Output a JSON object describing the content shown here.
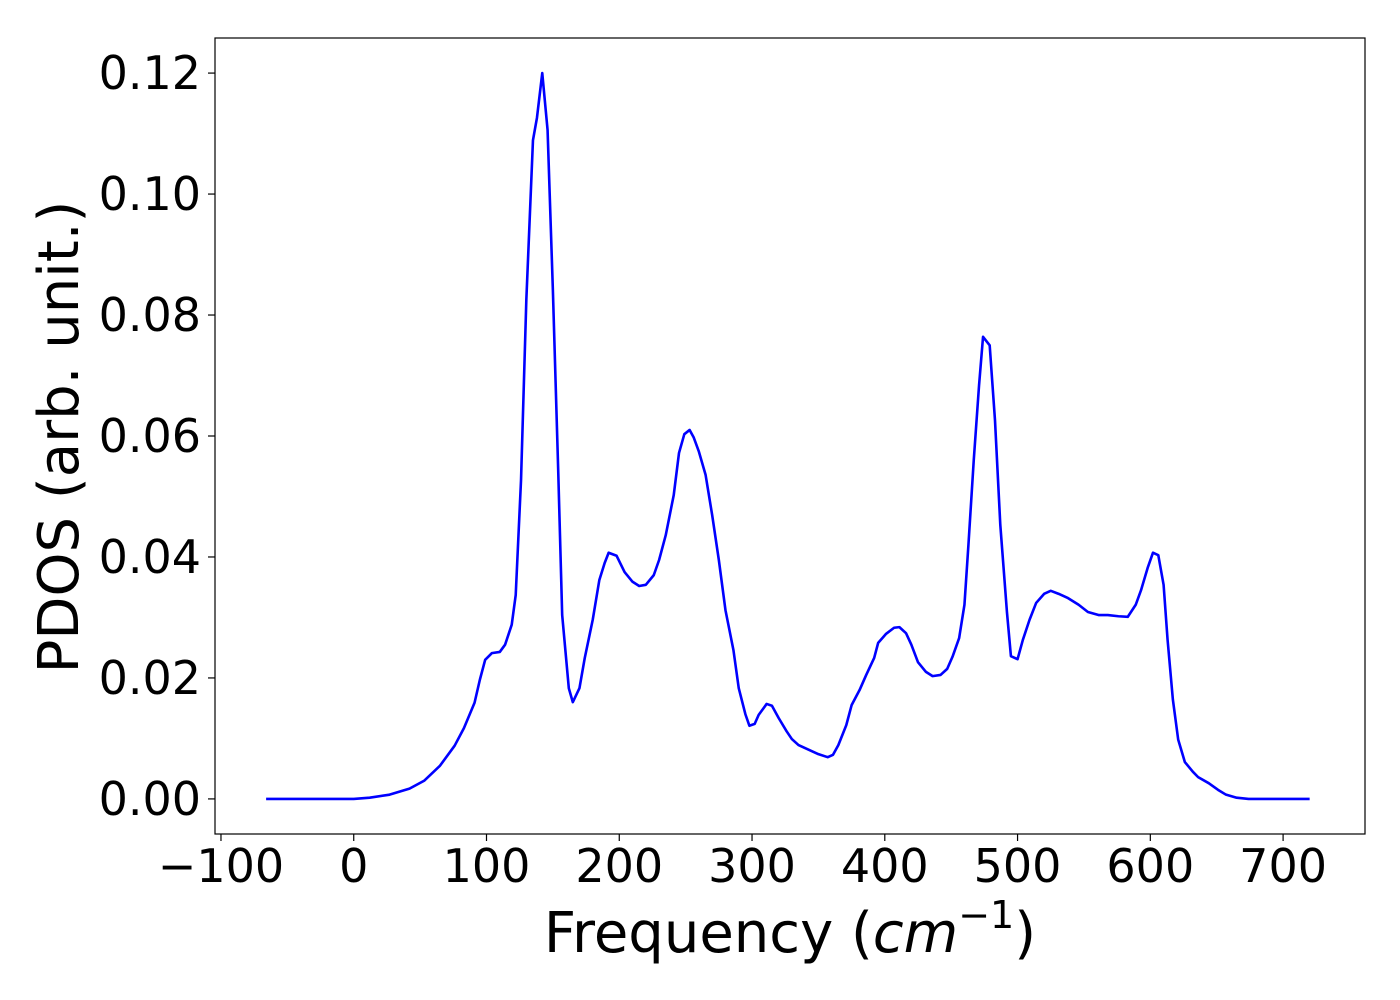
{
  "chart_data": {
    "type": "line",
    "x_label": [
      "Frequency (",
      "cm",
      "−1",
      ")"
    ],
    "y_label": "PDOS (arb. unit.)",
    "xlim": [
      -104.5,
      761.7
    ],
    "ylim": [
      -0.0058,
      0.1258
    ],
    "xticks": [
      {
        "value": -100,
        "label": "−100"
      },
      0,
      100,
      200,
      300,
      400,
      500,
      600,
      700
    ],
    "yticks": [
      {
        "value": 0,
        "label": "0.00"
      },
      0.02,
      0.04,
      0.06,
      0.08,
      {
        "value": 0.1,
        "label": "0.10"
      },
      0.12
    ],
    "grid": false,
    "series": [
      {
        "color": "#0000ff",
        "x": [
          -66,
          0,
          12,
          27,
          42,
          53,
          65,
          76,
          83,
          91,
          95,
          99,
          104,
          110,
          114,
          119,
          122,
          126,
          130,
          135,
          138,
          142,
          146,
          150,
          154,
          157,
          162,
          165,
          170,
          174,
          180,
          185,
          189,
          192,
          198,
          204,
          210,
          215,
          220,
          226,
          230,
          235,
          241,
          245,
          249,
          253,
          256,
          260,
          265,
          270,
          275,
          280,
          286,
          290,
          295,
          298,
          302,
          305,
          311,
          315,
          320,
          326,
          330,
          335,
          343,
          350,
          357,
          361,
          365,
          371,
          375,
          381,
          386,
          392,
          395,
          401,
          407,
          411,
          416,
          420,
          425,
          431,
          436,
          442,
          447,
          451,
          456,
          460,
          463,
          467,
          471,
          474,
          479,
          483,
          487,
          492,
          495,
          500,
          504,
          509,
          514,
          520,
          525,
          531,
          538,
          546,
          553,
          561,
          568,
          576,
          583,
          589,
          593,
          598,
          602,
          606,
          610,
          613,
          617,
          621,
          626,
          632,
          636,
          644,
          651,
          657,
          665,
          674,
          720
        ],
        "values": [
          0,
          0,
          0.0002,
          0.0007,
          0.0017,
          0.003,
          0.0055,
          0.0088,
          0.0117,
          0.0159,
          0.0197,
          0.023,
          0.0241,
          0.0243,
          0.0255,
          0.0288,
          0.0337,
          0.0527,
          0.0825,
          0.1089,
          0.1126,
          0.12,
          0.1106,
          0.0841,
          0.0544,
          0.0304,
          0.0183,
          0.016,
          0.0183,
          0.0233,
          0.0296,
          0.0362,
          0.039,
          0.0407,
          0.0402,
          0.0375,
          0.0359,
          0.0352,
          0.0354,
          0.037,
          0.0395,
          0.0436,
          0.0502,
          0.0572,
          0.0603,
          0.061,
          0.0598,
          0.0574,
          0.0536,
          0.0469,
          0.0395,
          0.0312,
          0.0246,
          0.0183,
          0.014,
          0.0121,
          0.0124,
          0.0139,
          0.0157,
          0.0154,
          0.0134,
          0.0112,
          0.0099,
          0.0089,
          0.0081,
          0.0074,
          0.0069,
          0.0073,
          0.0089,
          0.0122,
          0.0155,
          0.018,
          0.0205,
          0.0233,
          0.0258,
          0.0273,
          0.0283,
          0.0284,
          0.0274,
          0.0255,
          0.0226,
          0.021,
          0.0203,
          0.0205,
          0.0215,
          0.0235,
          0.0266,
          0.0321,
          0.042,
          0.056,
          0.0684,
          0.0764,
          0.075,
          0.0626,
          0.0453,
          0.0309,
          0.0236,
          0.0231,
          0.0263,
          0.0296,
          0.0324,
          0.0339,
          0.0344,
          0.0339,
          0.0332,
          0.0321,
          0.0309,
          0.0304,
          0.0304,
          0.0302,
          0.0301,
          0.0321,
          0.0345,
          0.0382,
          0.0407,
          0.0403,
          0.0354,
          0.0263,
          0.0164,
          0.0098,
          0.0061,
          0.0045,
          0.0036,
          0.0026,
          0.0015,
          0.0007,
          0.0002,
          0,
          0
        ]
      }
    ]
  }
}
